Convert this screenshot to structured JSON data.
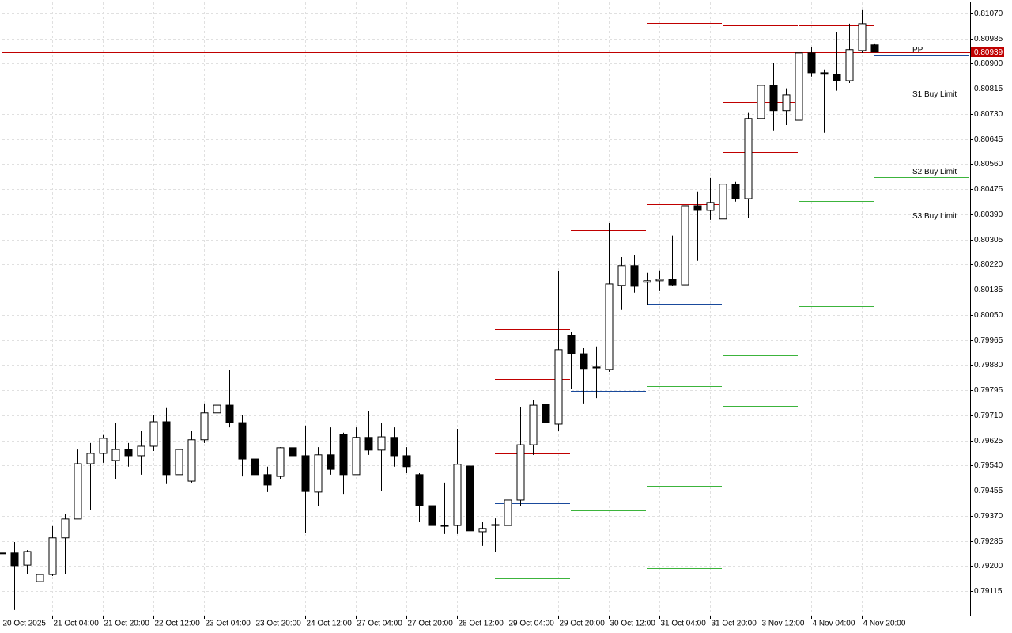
{
  "chart_data": {
    "type": "candlestick",
    "categories": [
      "20 Oct 2025",
      null,
      null,
      null,
      "21 Oct 04:00",
      null,
      null,
      null,
      "21 Oct 20:00",
      null,
      null,
      null,
      "22 Oct 12:00",
      null,
      null,
      null,
      "23 Oct 04:00",
      null,
      null,
      null,
      "23 Oct 20:00",
      null,
      null,
      null,
      "24 Oct 12:00",
      null,
      null,
      null,
      "27 Oct 04:00",
      null,
      null,
      null,
      "27 Oct 20:00",
      null,
      null,
      null,
      "28 Oct 12:00",
      null,
      null,
      null,
      "29 Oct 04:00",
      null,
      null,
      null,
      "29 Oct 20:00",
      null,
      null,
      null,
      "30 Oct 12:00",
      null,
      null,
      null,
      "31 Oct 04:00",
      null,
      null,
      null,
      "31 Oct 20:00",
      null,
      null,
      null,
      "3 Nov 12:00",
      null,
      null,
      null,
      "4 Nov 04:00",
      null,
      null,
      null,
      "4 Nov 20:00",
      null
    ],
    "open": [
      0.79244,
      0.79244,
      0.79203,
      0.79147,
      0.79171,
      0.79295,
      0.79359,
      0.79546,
      0.79581,
      0.79557,
      0.79594,
      0.79573,
      0.79605,
      0.79688,
      0.79509,
      0.79487,
      0.79627,
      0.79718,
      0.79744,
      0.79685,
      0.79562,
      0.79509,
      0.79503,
      0.796,
      0.79573,
      0.7945,
      0.79576,
      0.79645,
      0.79509,
      0.79635,
      0.79592,
      0.79635,
      0.79573,
      0.79509,
      0.79404,
      0.79337,
      0.79337,
      0.79538,
      0.79316,
      0.79337,
      0.79337,
      0.79423,
      0.7961,
      0.79747,
      0.7968,
      0.7998,
      0.79918,
      0.79873,
      0.79865,
      0.80149,
      0.80216,
      0.8016,
      0.80165,
      0.8017,
      0.80151,
      0.80419,
      0.80403,
      0.80374,
      0.80492,
      0.80443,
      0.80714,
      0.80826,
      0.80741,
      0.80708,
      0.80936,
      0.80869,
      0.80864,
      0.80842,
      0.80944,
      0.80963
    ],
    "high": [
      0.79254,
      0.79281,
      0.79254,
      0.79187,
      0.79335,
      0.79375,
      0.79594,
      0.79616,
      0.79643,
      0.79683,
      0.79616,
      0.79656,
      0.7971,
      0.79734,
      0.79616,
      0.79656,
      0.7975,
      0.79798,
      0.79862,
      0.7971,
      0.79602,
      0.79536,
      0.79602,
      0.79656,
      0.79675,
      0.79602,
      0.79669,
      0.79651,
      0.79669,
      0.79723,
      0.79683,
      0.79669,
      0.79602,
      0.79514,
      0.79455,
      0.79482,
      0.79664,
      0.79562,
      0.79348,
      0.79361,
      0.79469,
      0.79736,
      0.79763,
      0.79755,
      0.80197,
      0.79991,
      0.79937,
      0.79943,
      0.8036,
      0.80245,
      0.80253,
      0.80192,
      0.802,
      0.80318,
      0.80484,
      0.80465,
      0.80513,
      0.80526,
      0.805,
      0.80733,
      0.80858,
      0.80901,
      0.80816,
      0.80982,
      0.80955,
      0.8088,
      0.81008,
      0.81035,
      0.81081,
      0.80968
    ],
    "low": [
      0.79233,
      0.79051,
      0.79174,
      0.79115,
      0.79166,
      0.79174,
      0.79359,
      0.79388,
      0.79549,
      0.79495,
      0.79536,
      0.79509,
      0.79589,
      0.79477,
      0.79495,
      0.79482,
      0.79616,
      0.7971,
      0.79669,
      0.79503,
      0.79477,
      0.7945,
      0.79495,
      0.79562,
      0.79313,
      0.79402,
      0.79509,
      0.79444,
      0.79509,
      0.79576,
      0.79455,
      0.79536,
      0.79514,
      0.79348,
      0.79308,
      0.79308,
      0.79308,
      0.79241,
      0.79268,
      0.79249,
      0.79335,
      0.79402,
      0.79576,
      0.79562,
      0.79656,
      0.79798,
      0.7975,
      0.79768,
      0.79857,
      0.80066,
      0.80125,
      0.80084,
      0.8013,
      0.80146,
      0.8013,
      0.80232,
      0.80371,
      0.80318,
      0.80433,
      0.80376,
      0.80655,
      0.80674,
      0.80692,
      0.80682,
      0.80856,
      0.80666,
      0.80808,
      0.80834,
      0.80936,
      0.80939
    ],
    "close": [
      0.79244,
      0.79201,
      0.79249,
      0.79171,
      0.79295,
      0.79359,
      0.79546,
      0.79581,
      0.79632,
      0.79594,
      0.79573,
      0.79605,
      0.79688,
      0.79509,
      0.79594,
      0.79627,
      0.79718,
      0.79744,
      0.79685,
      0.79562,
      0.79509,
      0.79474,
      0.796,
      0.79573,
      0.79452,
      0.79576,
      0.79527,
      0.79509,
      0.79635,
      0.79592,
      0.79637,
      0.79573,
      0.79536,
      0.79404,
      0.79337,
      0.79335,
      0.79544,
      0.79319,
      0.79327,
      0.7934,
      0.79423,
      0.7961,
      0.79744,
      0.79685,
      0.79932,
      0.79918,
      0.79868,
      0.7987,
      0.80154,
      0.80216,
      0.80146,
      0.80165,
      0.8017,
      0.80151,
      0.80419,
      0.80403,
      0.8043,
      0.80492,
      0.80443,
      0.80714,
      0.80826,
      0.80741,
      0.80794,
      0.80936,
      0.80869,
      0.80864,
      0.80842,
      0.80947,
      0.81035,
      0.80939
    ],
    "up_color": "#ffffff",
    "down_color": "#000000",
    "ylim": [
      0.79032,
      0.81107
    ],
    "yticks": [
      {
        "value": 0.8107,
        "label": "0.81070"
      },
      0.80985,
      {
        "value": 0.809,
        "label": "0.80900"
      },
      0.80815,
      {
        "value": 0.8073,
        "label": "0.80730"
      },
      0.80645,
      {
        "value": 0.8056,
        "label": "0.80560"
      },
      0.80475,
      {
        "value": 0.8039,
        "label": "0.80390"
      },
      0.80305,
      {
        "value": 0.8022,
        "label": "0.80220"
      },
      0.80135,
      {
        "value": 0.8005,
        "label": "0.80050"
      },
      0.79965,
      {
        "value": 0.7988,
        "label": "0.79880"
      },
      0.79795,
      {
        "value": 0.7971,
        "label": "0.79710"
      },
      0.79625,
      {
        "value": 0.7954,
        "label": "0.79540"
      },
      0.79455,
      {
        "value": 0.7937,
        "label": "0.79370"
      },
      0.79285,
      {
        "value": 0.792,
        "label": "0.79200"
      },
      0.79115
    ],
    "grid": true,
    "last_price": 0.80939,
    "last_price_color": "#c00000",
    "levels": [
      {
        "from": 39,
        "to": 45,
        "color": "#c00000",
        "value": 0.80001
      },
      {
        "from": 39,
        "to": 45,
        "color": "#c00000",
        "value": 0.79833
      },
      {
        "from": 39,
        "to": 45,
        "color": "#c00000",
        "value": 0.79581
      },
      {
        "from": 39,
        "to": 45,
        "color": "#1a4a9c",
        "value": 0.79412
      },
      {
        "from": 39,
        "to": 45,
        "color": "#3cb43c",
        "value": 0.79158
      },
      {
        "from": 45,
        "to": 51,
        "color": "#c00000",
        "value": 0.80738
      },
      {
        "from": 45,
        "to": 51,
        "color": "#c00000",
        "value": 0.80336
      },
      {
        "from": 45,
        "to": 51,
        "color": "#1a4a9c",
        "value": 0.79793
      },
      {
        "from": 45,
        "to": 51,
        "color": "#3cb43c",
        "value": 0.79388
      },
      {
        "from": 51,
        "to": 57,
        "color": "#c00000",
        "value": 0.81038
      },
      {
        "from": 51,
        "to": 57,
        "color": "#c00000",
        "value": 0.807
      },
      {
        "from": 51,
        "to": 57,
        "color": "#c00000",
        "value": 0.80425
      },
      {
        "from": 51,
        "to": 57,
        "color": "#1a4a9c",
        "value": 0.80087
      },
      {
        "from": 51,
        "to": 57,
        "color": "#3cb43c",
        "value": 0.79809
      },
      {
        "from": 51,
        "to": 57,
        "color": "#3cb43c",
        "value": 0.79471
      },
      {
        "from": 51,
        "to": 57,
        "color": "#3cb43c",
        "value": 0.79193
      },
      {
        "from": 57,
        "to": 63,
        "color": "#c00000",
        "value": 0.8103
      },
      {
        "from": 57,
        "to": 63,
        "color": "#c00000",
        "value": 0.8077
      },
      {
        "from": 57,
        "to": 63,
        "color": "#c00000",
        "value": 0.80601
      },
      {
        "from": 57,
        "to": 63,
        "color": "#1a4a9c",
        "value": 0.80342
      },
      {
        "from": 57,
        "to": 63,
        "color": "#3cb43c",
        "value": 0.80173
      },
      {
        "from": 57,
        "to": 63,
        "color": "#3cb43c",
        "value": 0.79913
      },
      {
        "from": 57,
        "to": 63,
        "color": "#3cb43c",
        "value": 0.79742
      },
      {
        "from": 63,
        "to": 69,
        "color": "#c00000",
        "value": 0.8103
      },
      {
        "from": 63,
        "to": 69,
        "color": "#1a4a9c",
        "value": 0.80674
      },
      {
        "from": 63,
        "to": 69,
        "color": "#3cb43c",
        "value": 0.80435
      },
      {
        "from": 63,
        "to": 69,
        "color": "#3cb43c",
        "value": 0.80079
      },
      {
        "from": 63,
        "to": 69,
        "color": "#3cb43c",
        "value": 0.79841
      },
      {
        "from": 69,
        "to": null,
        "color": "#1a4a9c",
        "value": 0.80928,
        "label": "PP"
      },
      {
        "from": 69,
        "to": null,
        "color": "#3cb43c",
        "value": 0.80778,
        "label": "S1 Buy Limit"
      },
      {
        "from": 69,
        "to": null,
        "color": "#3cb43c",
        "value": 0.80516,
        "label": "S2 Buy Limit"
      },
      {
        "from": 69,
        "to": null,
        "color": "#3cb43c",
        "value": 0.80366,
        "label": "S3 Buy Limit"
      }
    ]
  }
}
